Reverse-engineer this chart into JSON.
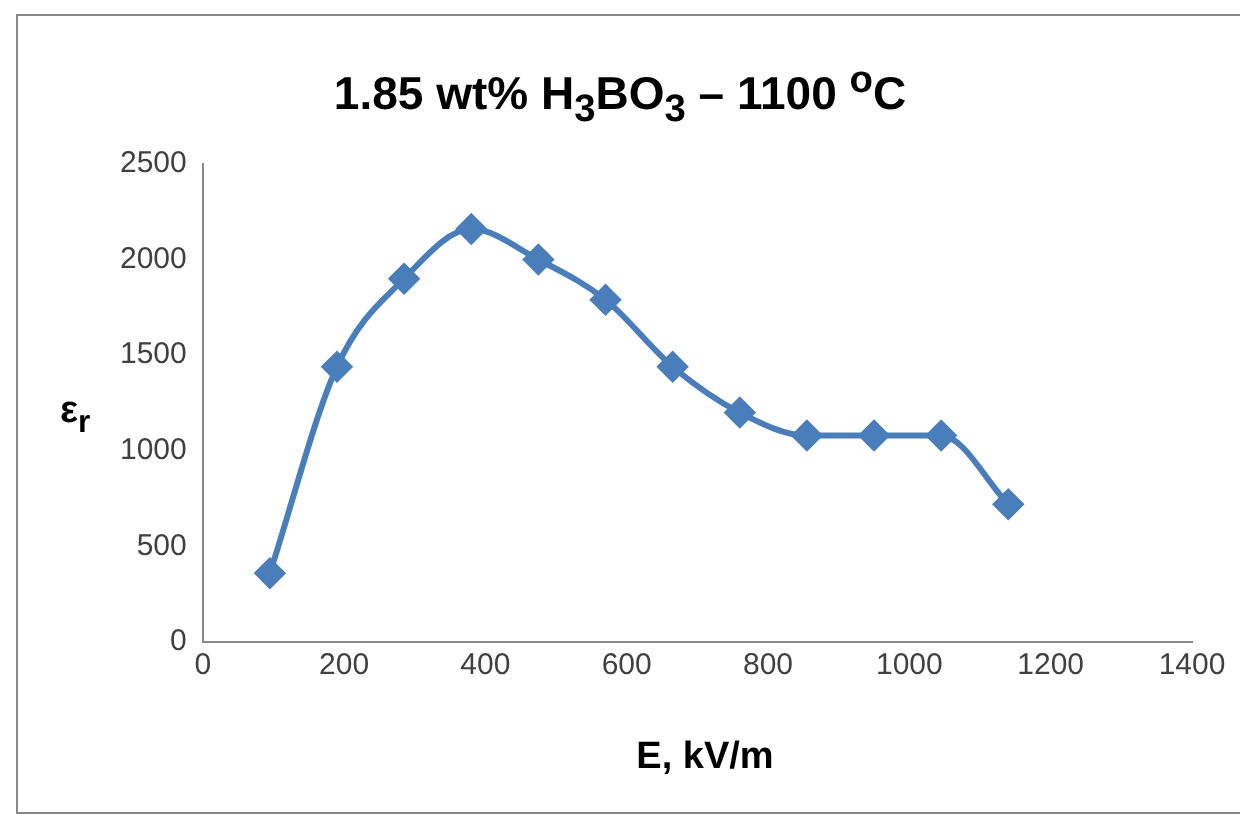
{
  "chart_data": {
    "type": "line",
    "title": "1.85 wt% H$_{3}$BO$_{3}$ – 1100 $^{o}$C",
    "xlabel": "E, kV/m",
    "ylabel": "ε$_{r}$",
    "x": [
      95,
      190,
      285,
      380,
      475,
      570,
      665,
      760,
      855,
      950,
      1045,
      1140
    ],
    "series": [
      {
        "color": "#4a7ebb",
        "values": [
          360,
          1440,
          1900,
          2160,
          2000,
          1790,
          1440,
          1200,
          1080,
          1080,
          1080,
          720
        ]
      }
    ],
    "xlim": [
      0,
      1400
    ],
    "xticks": [
      0,
      200,
      400,
      600,
      800,
      1000,
      1200,
      1400
    ],
    "ylim": [
      0,
      2500
    ],
    "yticks": [
      0,
      500,
      1000,
      1500,
      2000,
      2500
    ],
    "grid": false,
    "legend": false,
    "marker": "diamond",
    "line_style": "solid"
  }
}
